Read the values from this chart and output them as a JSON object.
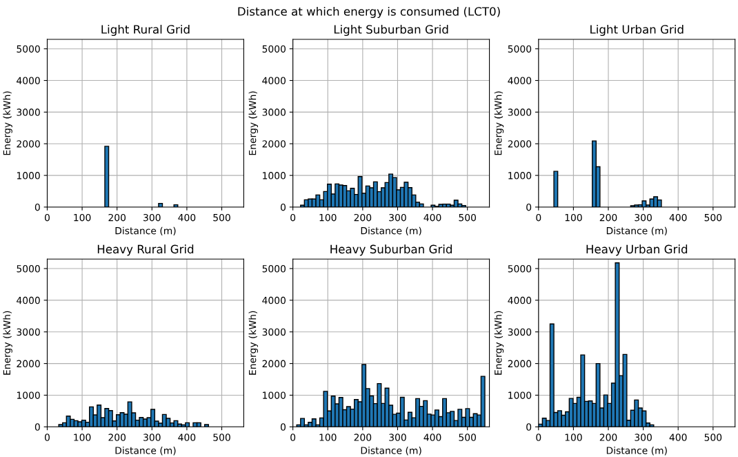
{
  "chart_data": [
    {
      "type": "histogram",
      "title": "Light Rural Grid",
      "xlabel": "Distance (m)",
      "ylabel": "Energy (kWh)",
      "annotations": [
        "Distance at which energy is consumed (LCT0)"
      ],
      "color": "#1f77b4",
      "grid": true,
      "xlim": [
        0,
        563
      ],
      "ylim": [
        0,
        5300
      ],
      "xticks": [
        0,
        100,
        200,
        300,
        400,
        500
      ],
      "yticks": [
        0,
        1000,
        2000,
        3000,
        4000,
        5000
      ],
      "bins": [
        0,
        11,
        22,
        33,
        44,
        55,
        66,
        77,
        88,
        99,
        110,
        121,
        132,
        143,
        154,
        165,
        176,
        187,
        198,
        209,
        220,
        231,
        242,
        253,
        264,
        275,
        286,
        297,
        308,
        319,
        330,
        341,
        352,
        363,
        374,
        385,
        396,
        407,
        418,
        429,
        440,
        451,
        462,
        473,
        484,
        495,
        506,
        517,
        528,
        539,
        550
      ],
      "values": [
        0,
        0,
        0,
        0,
        0,
        0,
        0,
        0,
        0,
        0,
        0,
        0,
        0,
        0,
        0,
        1920,
        0,
        0,
        0,
        0,
        0,
        0,
        0,
        0,
        0,
        0,
        0,
        0,
        0,
        115,
        0,
        0,
        0,
        72,
        0,
        0,
        0,
        0,
        0,
        0,
        0,
        0,
        0,
        0,
        0,
        0,
        0,
        0,
        0,
        0
      ]
    },
    {
      "type": "histogram",
      "title": "Light Suburban Grid",
      "xlabel": "Distance (m)",
      "ylabel": "Energy (kWh)",
      "color": "#1f77b4",
      "grid": true,
      "xlim": [
        0,
        563
      ],
      "ylim": [
        0,
        5300
      ],
      "xticks": [
        0,
        100,
        200,
        300,
        400,
        500
      ],
      "yticks": [
        0,
        1000,
        2000,
        3000,
        4000,
        5000
      ],
      "bins": [
        0,
        11,
        22,
        33,
        44,
        55,
        66,
        77,
        88,
        99,
        110,
        121,
        132,
        143,
        154,
        165,
        176,
        187,
        198,
        209,
        220,
        231,
        242,
        253,
        264,
        275,
        286,
        297,
        308,
        319,
        330,
        341,
        352,
        363,
        374,
        385,
        396,
        407,
        418,
        429,
        440,
        451,
        462,
        473,
        484,
        495,
        506,
        517,
        528,
        539,
        550
      ],
      "values": [
        0,
        0,
        58,
        230,
        254,
        254,
        384,
        230,
        493,
        725,
        413,
        732,
        696,
        681,
        514,
        594,
        399,
        964,
        435,
        667,
        609,
        797,
        486,
        609,
        775,
        1043,
        935,
        543,
        623,
        783,
        616,
        384,
        152,
        101,
        0,
        0,
        58,
        22,
        87,
        94,
        94,
        58,
        217,
        101,
        51,
        0,
        0,
        0,
        0,
        0
      ]
    },
    {
      "type": "histogram",
      "title": "Light Urban Grid",
      "xlabel": "Distance (m)",
      "ylabel": "Energy (kWh)",
      "color": "#1f77b4",
      "grid": true,
      "xlim": [
        0,
        563
      ],
      "ylim": [
        0,
        5300
      ],
      "xticks": [
        0,
        100,
        200,
        300,
        400,
        500
      ],
      "yticks": [
        0,
        1000,
        2000,
        3000,
        4000,
        5000
      ],
      "bins": [
        0,
        11,
        22,
        33,
        44,
        55,
        66,
        77,
        88,
        99,
        110,
        121,
        132,
        143,
        154,
        165,
        176,
        187,
        198,
        209,
        220,
        231,
        242,
        253,
        264,
        275,
        286,
        297,
        308,
        319,
        330,
        341,
        352,
        363,
        374,
        385,
        396,
        407,
        418,
        429,
        440,
        451,
        462,
        473,
        484,
        495,
        506,
        517,
        528,
        539,
        550
      ],
      "values": [
        0,
        0,
        0,
        0,
        1130,
        0,
        0,
        0,
        0,
        0,
        0,
        0,
        0,
        0,
        2090,
        1275,
        0,
        0,
        0,
        0,
        0,
        0,
        0,
        0,
        43,
        65,
        72,
        196,
        65,
        254,
        326,
        225,
        0,
        0,
        0,
        0,
        0,
        0,
        0,
        0,
        0,
        0,
        0,
        0,
        0,
        0,
        0,
        0,
        0,
        0
      ]
    },
    {
      "type": "histogram",
      "title": "Heavy Rural Grid",
      "xlabel": "Distance (m)",
      "ylabel": "Energy (kWh)",
      "color": "#1f77b4",
      "grid": true,
      "xlim": [
        0,
        563
      ],
      "ylim": [
        0,
        5300
      ],
      "xticks": [
        0,
        100,
        200,
        300,
        400,
        500
      ],
      "yticks": [
        0,
        1000,
        2000,
        3000,
        4000,
        5000
      ],
      "bins": [
        0,
        11,
        22,
        33,
        44,
        55,
        66,
        77,
        88,
        99,
        110,
        121,
        132,
        143,
        154,
        165,
        176,
        187,
        198,
        209,
        220,
        231,
        242,
        253,
        264,
        275,
        286,
        297,
        308,
        319,
        330,
        341,
        352,
        363,
        374,
        385,
        396,
        407,
        418,
        429,
        440,
        451,
        462,
        473,
        484,
        495,
        506,
        517,
        528,
        539,
        550
      ],
      "values": [
        0,
        0,
        0,
        72,
        130,
        340,
        239,
        196,
        159,
        210,
        145,
        630,
        377,
        688,
        290,
        580,
        514,
        188,
        384,
        449,
        399,
        790,
        442,
        210,
        297,
        246,
        290,
        551,
        181,
        116,
        391,
        268,
        123,
        196,
        87,
        65,
        130,
        0,
        130,
        130,
        0,
        72,
        0,
        0,
        0,
        0,
        0,
        0,
        0,
        0
      ]
    },
    {
      "type": "histogram",
      "title": "Heavy Suburban Grid",
      "xlabel": "Distance (m)",
      "ylabel": "Energy (kWh)",
      "color": "#1f77b4",
      "grid": true,
      "xlim": [
        0,
        563
      ],
      "ylim": [
        0,
        5300
      ],
      "xticks": [
        0,
        100,
        200,
        300,
        400,
        500
      ],
      "yticks": [
        0,
        1000,
        2000,
        3000,
        4000,
        5000
      ],
      "bins": [
        0,
        11,
        22,
        33,
        44,
        55,
        66,
        77,
        88,
        99,
        110,
        121,
        132,
        143,
        154,
        165,
        176,
        187,
        198,
        209,
        220,
        231,
        242,
        253,
        264,
        275,
        286,
        297,
        308,
        319,
        330,
        341,
        352,
        363,
        374,
        385,
        396,
        407,
        418,
        429,
        440,
        451,
        462,
        473,
        484,
        495,
        506,
        517,
        528,
        539,
        550
      ],
      "values": [
        0,
        65,
        266,
        65,
        144,
        252,
        65,
        281,
        1122,
        504,
        971,
        727,
        928,
        540,
        640,
        561,
        863,
        791,
        1971,
        1209,
        978,
        734,
        1367,
        741,
        1223,
        683,
        396,
        432,
        935,
        216,
        460,
        288,
        892,
        647,
        827,
        403,
        374,
        532,
        324,
        892,
        446,
        489,
        201,
        554,
        302,
        576,
        302,
        417,
        374,
        1597
      ]
    },
    {
      "type": "histogram",
      "title": "Heavy Urban Grid",
      "xlabel": "Distance (m)",
      "ylabel": "Energy (kWh)",
      "color": "#1f77b4",
      "grid": true,
      "xlim": [
        0,
        563
      ],
      "ylim": [
        0,
        5300
      ],
      "xticks": [
        0,
        100,
        200,
        300,
        400,
        500
      ],
      "yticks": [
        0,
        1000,
        2000,
        3000,
        4000,
        5000
      ],
      "bins": [
        0,
        11,
        22,
        33,
        44,
        55,
        66,
        77,
        88,
        99,
        110,
        121,
        132,
        143,
        154,
        165,
        176,
        187,
        198,
        209,
        220,
        231,
        242,
        253,
        264,
        275,
        286,
        297,
        308,
        319,
        330,
        341,
        352,
        363,
        374,
        385,
        396,
        407,
        418,
        429,
        440,
        451,
        462,
        473,
        484,
        495,
        506,
        517,
        528,
        539,
        550
      ],
      "values": [
        86,
        273,
        201,
        3252,
        453,
        511,
        367,
        475,
        899,
        741,
        935,
        2273,
        806,
        820,
        741,
        2000,
        597,
        1007,
        741,
        1381,
        5180,
        1619,
        2288,
        209,
        525,
        849,
        597,
        504,
        122,
        65,
        0,
        0,
        0,
        0,
        0,
        0,
        0,
        0,
        0,
        0,
        0,
        0,
        0,
        0,
        0,
        0,
        0,
        0,
        0,
        0
      ]
    }
  ]
}
